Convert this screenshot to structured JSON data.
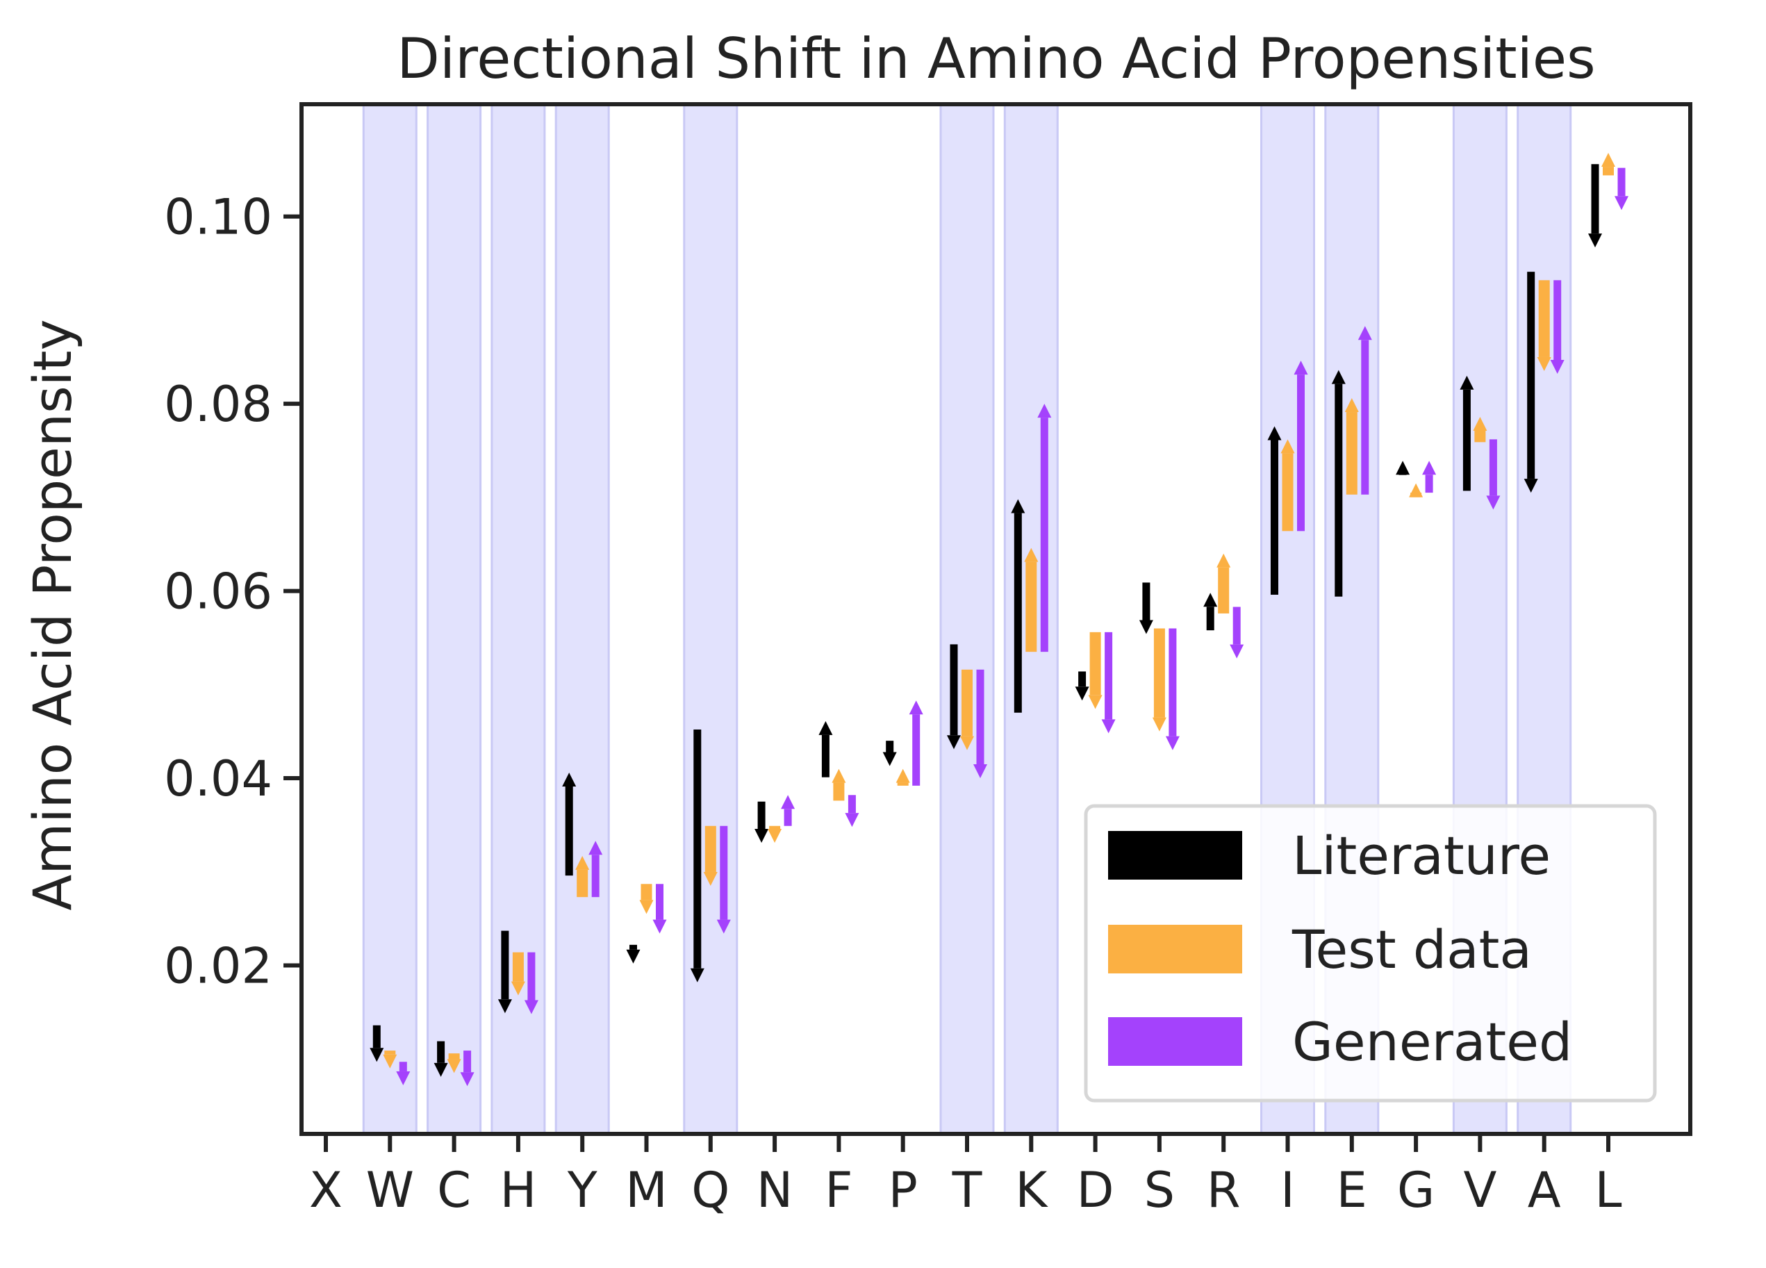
{
  "chart_data": {
    "type": "bar",
    "title": "Directional Shift in Amino Acid Propensities",
    "xlabel": "",
    "ylabel": "Amino Acid Propensity",
    "ylim": [
      0.002,
      0.112
    ],
    "yticks": [
      0.02,
      0.04,
      0.06,
      0.08,
      0.1
    ],
    "ytick_labels": [
      "0.02",
      "0.04",
      "0.06",
      "0.08",
      "0.10"
    ],
    "categories": [
      "X",
      "W",
      "C",
      "H",
      "Y",
      "M",
      "Q",
      "N",
      "F",
      "P",
      "T",
      "K",
      "D",
      "S",
      "R",
      "I",
      "E",
      "G",
      "V",
      "A",
      "L"
    ],
    "shaded_categories": [
      "W",
      "C",
      "H",
      "Y",
      "Q",
      "T",
      "K",
      "I",
      "E",
      "V",
      "A"
    ],
    "grid": false,
    "legend_position": "lower-right",
    "series": [
      {
        "name": "Literature",
        "color": "#000000",
        "from": [
          null,
          0.0136,
          0.0119,
          0.0237,
          0.0296,
          0.0222,
          0.0452,
          0.0375,
          0.0401,
          0.044,
          0.0543,
          0.047,
          0.0514,
          0.0609,
          0.0558,
          0.0596,
          0.0594,
          0.0724,
          0.0707,
          0.0941,
          0.1056
        ],
        "to": [
          null,
          0.0097,
          0.0081,
          0.0149,
          0.0406,
          0.0202,
          0.0182,
          0.0331,
          0.0461,
          0.0413,
          0.0431,
          0.0698,
          0.0483,
          0.0554,
          0.0598,
          0.0776,
          0.0836,
          0.0739,
          0.083,
          0.0705,
          0.0967
        ]
      },
      {
        "name": "Test data",
        "color": "#fbb043",
        "from": [
          null,
          0.0109,
          0.0106,
          0.0214,
          0.0273,
          0.0287,
          0.0349,
          0.0349,
          0.0376,
          0.0392,
          0.0516,
          0.0535,
          0.0556,
          0.056,
          0.0576,
          0.0664,
          0.0703,
          0.0705,
          0.0759,
          0.0932,
          0.1044
        ],
        "to": [
          null,
          0.009,
          0.0085,
          0.0168,
          0.0317,
          0.0255,
          0.0285,
          0.0331,
          0.041,
          0.041,
          0.043,
          0.0646,
          0.0474,
          0.045,
          0.064,
          0.0762,
          0.0806,
          0.0715,
          0.0786,
          0.0835,
          0.1068
        ]
      },
      {
        "name": "Generated",
        "color": "#a442fc",
        "from": [
          null,
          0.0097,
          0.0109,
          0.0214,
          0.0273,
          0.0287,
          0.0349,
          0.0349,
          0.0382,
          0.0392,
          0.0516,
          0.0535,
          0.0556,
          0.056,
          0.0583,
          0.0664,
          0.0703,
          0.0705,
          0.0762,
          0.0932,
          0.1052
        ],
        "to": [
          null,
          0.0072,
          0.0071,
          0.0148,
          0.0333,
          0.0234,
          0.0234,
          0.0382,
          0.0348,
          0.0483,
          0.04,
          0.08,
          0.0448,
          0.043,
          0.0528,
          0.0846,
          0.0883,
          0.0739,
          0.0687,
          0.0832,
          0.1007
        ]
      }
    ]
  },
  "legend": {
    "items": [
      {
        "label": "Literature",
        "color": "#000000"
      },
      {
        "label": "Test data",
        "color": "#fbb043"
      },
      {
        "label": "Generated",
        "color": "#a442fc"
      }
    ]
  },
  "style": {
    "shade_color": "#e2e2fd",
    "shade_edge": "#c9c9f5",
    "axis_color": "#222222"
  }
}
